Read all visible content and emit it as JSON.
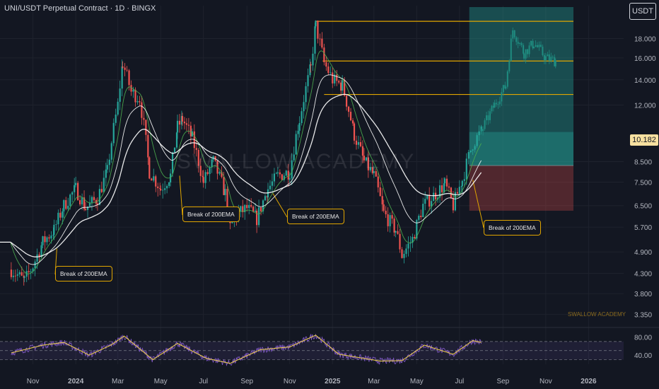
{
  "header": {
    "title": "UNI/USDT Perpetual Contract · 1D · BINGX",
    "unit": "USDT",
    "watermark": "SWALLOW ACADEMY",
    "brand": "SWALLOW ACADEMY"
  },
  "colors": {
    "up": "#26a69a",
    "down": "#ef5350",
    "ema_fast": "#4caf50",
    "ema_slow": "#ffffff",
    "level": "#e0a500",
    "rsi": "#7e57c2",
    "rsi_ma": "#f3d34a"
  },
  "chart_data": {
    "type": "candlestick",
    "y_scale": "log",
    "ylim": [
      3.2,
      22
    ],
    "y_ticks": [
      "18.000",
      "16.000",
      "14.000",
      "12.000",
      "10.182",
      "8.500",
      "7.500",
      "6.500",
      "5.700",
      "4.900",
      "4.300",
      "3.800",
      "3.350"
    ],
    "x_ticks": [
      "Nov",
      "2024",
      "Mar",
      "May",
      "Jul",
      "Sep",
      "Nov",
      "2025",
      "Mar",
      "May",
      "Jul",
      "Sep",
      "Nov",
      "2026"
    ],
    "last_price": 10.182,
    "levels": [
      20.0,
      15.7,
      12.8
    ],
    "position": {
      "entry": 8.3,
      "target": 22.0,
      "stop": 6.3
    },
    "annotations": [
      {
        "text": "Break of 200EMA",
        "date": "2023-12-05"
      },
      {
        "text": "Break of 200EMA",
        "date": "2024-06-10"
      },
      {
        "text": "Break of 200EMA",
        "date": "2024-10-05"
      },
      {
        "text": "Break of 200EMA",
        "date": "2025-07-20"
      }
    ],
    "price_path": [
      [
        "2023-10-01",
        4.4
      ],
      [
        "2023-10-20",
        4.1
      ],
      [
        "2023-11-01",
        4.5
      ],
      [
        "2023-11-15",
        5.2
      ],
      [
        "2023-12-01",
        5.6
      ],
      [
        "2023-12-15",
        6.5
      ],
      [
        "2024-01-01",
        7.2
      ],
      [
        "2024-01-15",
        6.4
      ],
      [
        "2024-02-01",
        6.8
      ],
      [
        "2024-02-15",
        8.0
      ],
      [
        "2024-03-01",
        12.0
      ],
      [
        "2024-03-08",
        15.5
      ],
      [
        "2024-03-20",
        13.0
      ],
      [
        "2024-04-01",
        12.5
      ],
      [
        "2024-04-15",
        8.0
      ],
      [
        "2024-05-01",
        7.2
      ],
      [
        "2024-05-15",
        7.8
      ],
      [
        "2024-05-25",
        10.5
      ],
      [
        "2024-06-01",
        11.0
      ],
      [
        "2024-06-15",
        9.8
      ],
      [
        "2024-07-01",
        7.5
      ],
      [
        "2024-07-15",
        8.5
      ],
      [
        "2024-08-01",
        7.0
      ],
      [
        "2024-08-08",
        5.7
      ],
      [
        "2024-08-20",
        6.2
      ],
      [
        "2024-09-01",
        6.4
      ],
      [
        "2024-09-15",
        6.0
      ],
      [
        "2024-10-01",
        7.2
      ],
      [
        "2024-10-15",
        7.8
      ],
      [
        "2024-11-01",
        8.0
      ],
      [
        "2024-11-15",
        11.0
      ],
      [
        "2024-12-01",
        15.0
      ],
      [
        "2024-12-08",
        19.5
      ],
      [
        "2024-12-20",
        15.5
      ],
      [
        "2025-01-01",
        14.0
      ],
      [
        "2025-01-15",
        13.5
      ],
      [
        "2025-02-01",
        10.0
      ],
      [
        "2025-02-15",
        8.5
      ],
      [
        "2025-03-01",
        7.8
      ],
      [
        "2025-03-15",
        6.2
      ],
      [
        "2025-04-01",
        5.6
      ],
      [
        "2025-04-10",
        4.8
      ],
      [
        "2025-04-25",
        5.3
      ],
      [
        "2025-05-10",
        6.5
      ],
      [
        "2025-05-25",
        6.9
      ],
      [
        "2025-06-10",
        7.4
      ],
      [
        "2025-06-22",
        6.5
      ],
      [
        "2025-07-05",
        7.6
      ],
      [
        "2025-07-20",
        9.5
      ],
      [
        "2025-08-01",
        10.2
      ]
    ],
    "projection": [
      [
        "2025-08-01",
        10.2
      ],
      [
        "2025-08-20",
        12.0
      ],
      [
        "2025-09-05",
        13.5
      ],
      [
        "2025-09-15",
        19.0
      ],
      [
        "2025-10-01",
        16.5
      ],
      [
        "2025-10-15",
        17.5
      ],
      [
        "2025-11-01",
        16.0
      ],
      [
        "2025-11-15",
        15.7
      ]
    ],
    "rsi": {
      "ticks": [
        "80.00",
        "40.00"
      ],
      "upper": 70,
      "lower": 30,
      "path": [
        [
          "2023-10-01",
          45
        ],
        [
          "2023-11-15",
          62
        ],
        [
          "2023-12-15",
          68
        ],
        [
          "2024-01-20",
          40
        ],
        [
          "2024-02-20",
          62
        ],
        [
          "2024-03-10",
          82
        ],
        [
          "2024-04-20",
          30
        ],
        [
          "2024-05-25",
          66
        ],
        [
          "2024-07-05",
          33
        ],
        [
          "2024-08-08",
          22
        ],
        [
          "2024-09-20",
          52
        ],
        [
          "2024-11-01",
          58
        ],
        [
          "2024-12-08",
          84
        ],
        [
          "2025-01-10",
          42
        ],
        [
          "2025-03-10",
          27
        ],
        [
          "2025-04-10",
          28
        ],
        [
          "2025-05-12",
          62
        ],
        [
          "2025-06-22",
          42
        ],
        [
          "2025-07-20",
          72
        ],
        [
          "2025-08-01",
          68
        ]
      ]
    }
  }
}
